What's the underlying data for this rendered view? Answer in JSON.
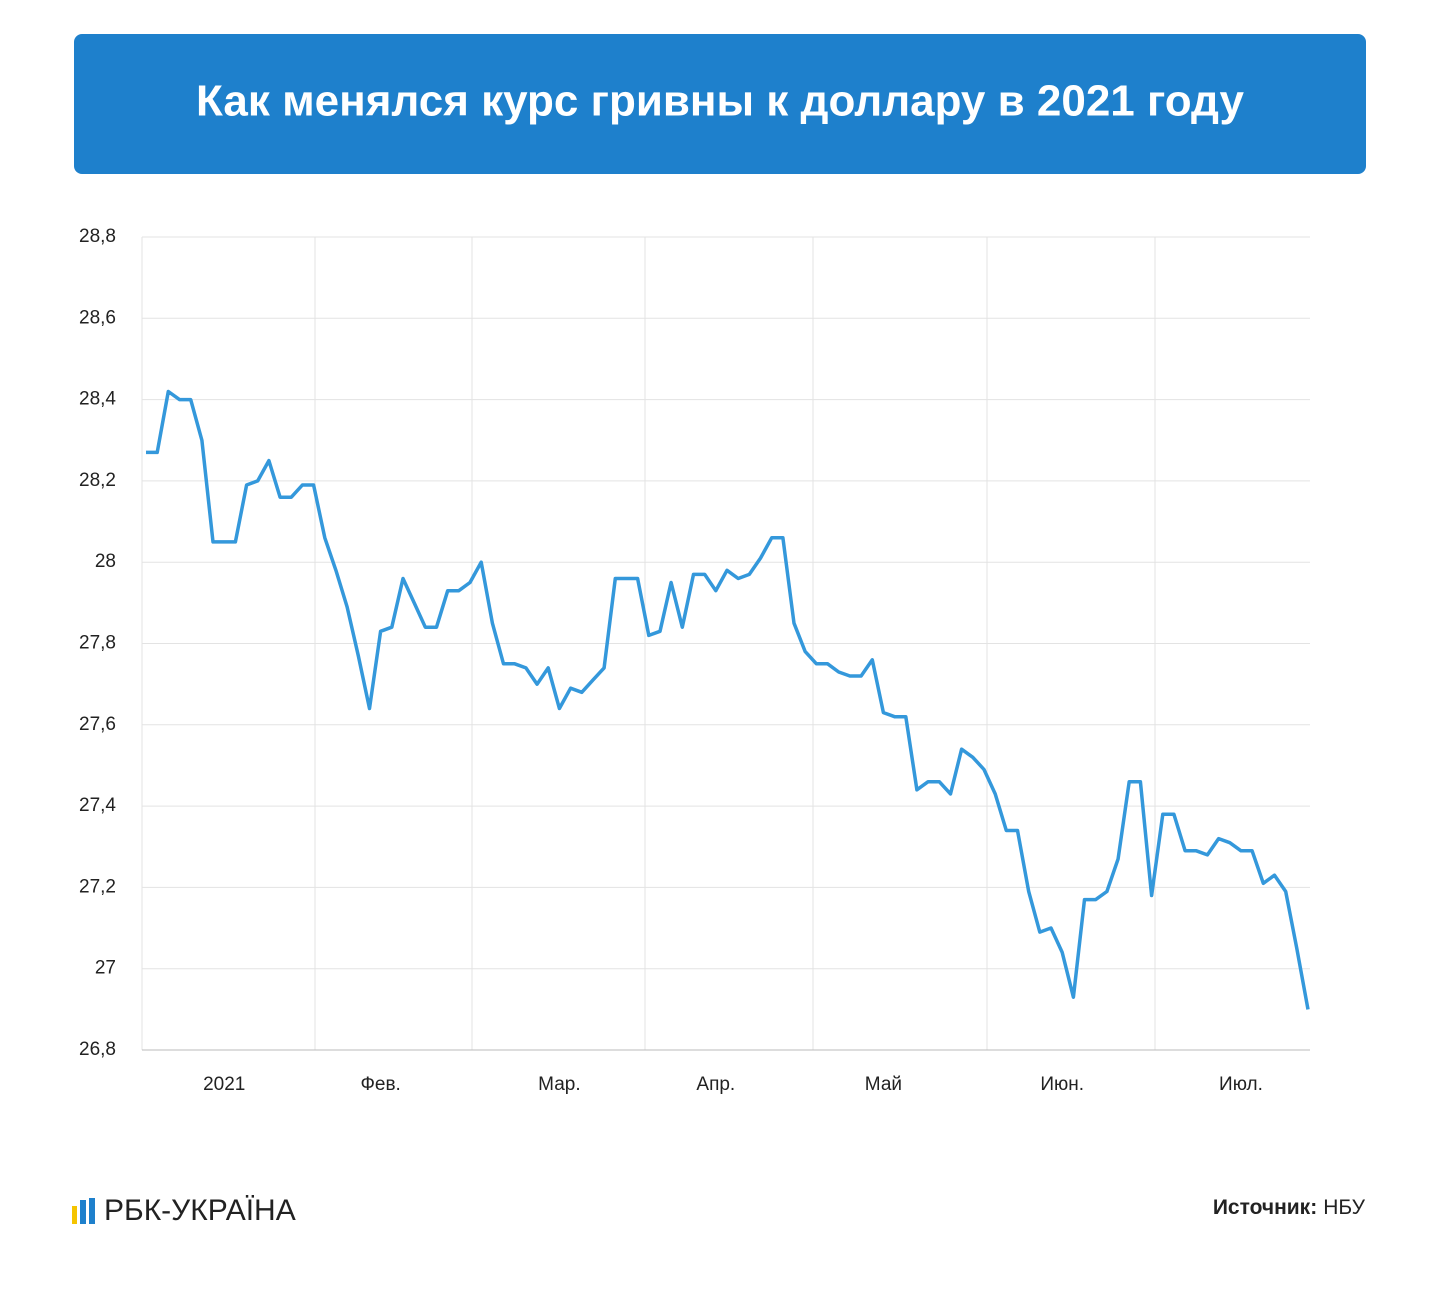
{
  "chart_data": {
    "type": "line",
    "title": "Как менялся курс гривны к доллару в 2021 году",
    "logo": "РБК-УКРАЇНА",
    "source_label": "Источник:",
    "source": "НБУ",
    "color": "#3498db",
    "grid": true,
    "categories": [
      null,
      null,
      null,
      null,
      null,
      null,
      null,
      "2021",
      null,
      null,
      null,
      null,
      null,
      null,
      null,
      null,
      null,
      null,
      null,
      null,
      null,
      "Фев.",
      null,
      null,
      null,
      null,
      null,
      null,
      null,
      null,
      null,
      null,
      null,
      null,
      null,
      null,
      null,
      "Мар.",
      null,
      null,
      null,
      null,
      null,
      null,
      null,
      null,
      null,
      null,
      null,
      null,
      null,
      "Апр.",
      null,
      null,
      null,
      null,
      null,
      null,
      null,
      null,
      null,
      null,
      null,
      null,
      null,
      null,
      "Май",
      null,
      null,
      null,
      null,
      null,
      null,
      null,
      null,
      null,
      null,
      null,
      null,
      null,
      null,
      null,
      "Июн.",
      null,
      null,
      null,
      null,
      null,
      null,
      null,
      null,
      null,
      null,
      null,
      null,
      null,
      null,
      null,
      "Июл.",
      null,
      null,
      null,
      null,
      null,
      null
    ],
    "values": [
      28.27,
      28.27,
      28.42,
      28.4,
      28.4,
      28.3,
      28.05,
      28.05,
      28.05,
      28.19,
      28.2,
      28.25,
      28.16,
      28.16,
      28.19,
      28.19,
      28.06,
      27.98,
      27.89,
      27.77,
      27.64,
      27.83,
      27.84,
      27.96,
      27.9,
      27.84,
      27.84,
      27.93,
      27.93,
      27.95,
      28.0,
      27.85,
      27.75,
      27.75,
      27.74,
      27.7,
      27.74,
      27.64,
      27.69,
      27.68,
      27.71,
      27.74,
      27.96,
      27.96,
      27.96,
      27.82,
      27.83,
      27.95,
      27.84,
      27.97,
      27.97,
      27.93,
      27.98,
      27.96,
      27.97,
      28.01,
      28.06,
      28.06,
      27.85,
      27.78,
      27.75,
      27.75,
      27.73,
      27.72,
      27.72,
      27.76,
      27.63,
      27.62,
      27.62,
      27.44,
      27.46,
      27.46,
      27.43,
      27.54,
      27.52,
      27.49,
      27.43,
      27.34,
      27.34,
      27.19,
      27.09,
      27.1,
      27.04,
      26.93,
      27.17,
      27.17,
      27.19,
      27.27,
      27.46,
      27.46,
      27.18,
      27.38,
      27.38,
      27.29,
      27.29,
      27.28,
      27.32,
      27.31,
      27.29,
      27.29,
      27.21,
      27.23,
      27.19,
      27.05,
      26.9
    ],
    "ylim": [
      26.8,
      28.8
    ],
    "yticks": [
      {
        "value": 26.8,
        "label": "26,8"
      },
      27,
      {
        "value": 27.2,
        "label": "27,2"
      },
      {
        "value": 27.4,
        "label": "27,4"
      },
      {
        "value": 27.6,
        "label": "27,6"
      },
      {
        "value": 27.8,
        "label": "27,8"
      },
      28,
      {
        "value": 28.2,
        "label": "28,2"
      },
      {
        "value": 28.4,
        "label": "28,4"
      },
      {
        "value": 28.6,
        "label": "28,6"
      },
      {
        "value": 28.8,
        "label": "28,8"
      }
    ]
  }
}
